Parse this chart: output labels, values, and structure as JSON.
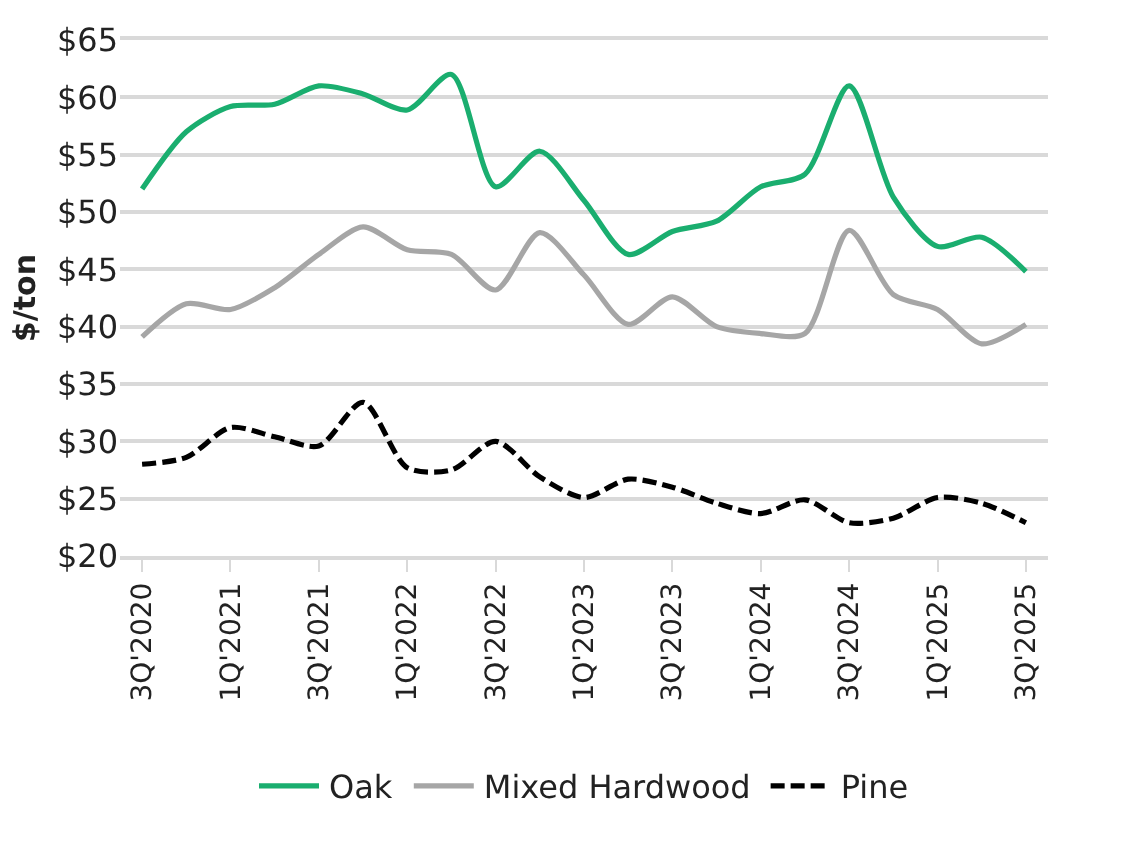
{
  "chart_data": {
    "type": "line",
    "ylabel": "$/ton",
    "categories": [
      "3Q'2020",
      null,
      "1Q'2021",
      null,
      "3Q'2021",
      null,
      "1Q'2022",
      null,
      "3Q'2022",
      null,
      "1Q'2023",
      null,
      "3Q'2023",
      null,
      "1Q'2024",
      null,
      "3Q'2024",
      null,
      "1Q'2025",
      null,
      "3Q'2025"
    ],
    "series": [
      {
        "name": "Oak",
        "color": "#1aae6f",
        "line_style": "solid",
        "values": [
          52,
          57,
          59.2,
          59.4,
          61,
          60.3,
          58.9,
          62,
          52.2,
          55.3,
          51,
          46.3,
          48.3,
          49.2,
          52.2,
          53.3,
          61,
          51.3,
          47,
          47.8,
          44.8
        ]
      },
      {
        "name": "Mixed Hardwood",
        "color": "#a6a6a6",
        "line_style": "solid",
        "values": [
          39.1,
          42,
          41.5,
          43.4,
          46.3,
          48.7,
          46.7,
          46.3,
          43.2,
          48.2,
          44.5,
          40.2,
          42.6,
          40,
          39.4,
          39.4,
          48.4,
          42.8,
          41.5,
          38.5,
          40.2
        ]
      },
      {
        "name": "Pine",
        "color": "#000000",
        "line_style": "dashed",
        "values": [
          28,
          28.6,
          31.2,
          30.4,
          29.6,
          33.4,
          27.7,
          27.5,
          30,
          26.9,
          25.1,
          26.7,
          26,
          24.6,
          23.7,
          24.9,
          22.9,
          23.3,
          25.1,
          24.6,
          22.9
        ]
      }
    ],
    "ylim": [
      20,
      65
    ],
    "yticks": [
      {
        "value": 20,
        "label": "$20"
      },
      {
        "value": 25,
        "label": "$25"
      },
      {
        "value": 30,
        "label": "$30"
      },
      {
        "value": 35,
        "label": "$35"
      },
      {
        "value": 40,
        "label": "$40"
      },
      {
        "value": 45,
        "label": "$45"
      },
      {
        "value": 50,
        "label": "$50"
      },
      {
        "value": 55,
        "label": "$55"
      },
      {
        "value": 60,
        "label": "$60"
      },
      {
        "value": 65,
        "label": "$65"
      }
    ],
    "grid": "y",
    "legend": "bottom",
    "marker": "none"
  }
}
